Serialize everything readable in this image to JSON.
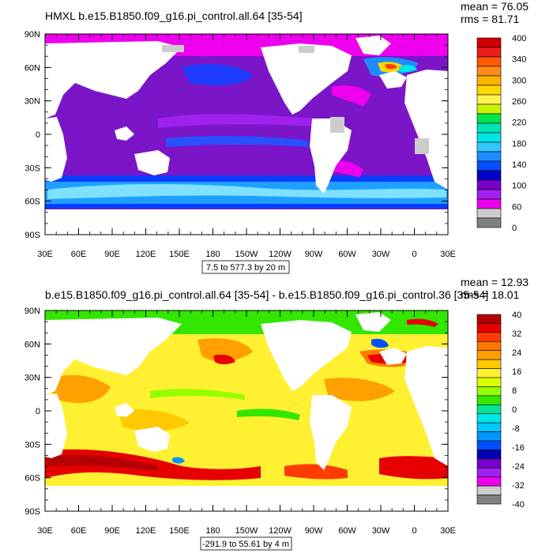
{
  "panels": [
    {
      "id": "top",
      "title": "HMXL b.e15.B1850.f09_g16.pi_control.all.64 [35-54]",
      "mean_text": "mean = 76.05",
      "rms_text": "rms = 81.71",
      "range_text": "7.5 to 577.3 by 20 m",
      "lat_labels": [
        "90N",
        "60N",
        "30N",
        "0",
        "30S",
        "60S",
        "90S"
      ],
      "lon_labels": [
        "30E",
        "60E",
        "90E",
        "120E",
        "150E",
        "180",
        "150W",
        "120W",
        "90W",
        "60W",
        "30W",
        "0",
        "30E"
      ],
      "colorbar": {
        "labels": [
          "400",
          "340",
          "300",
          "260",
          "220",
          "180",
          "140",
          "100",
          "60",
          "0"
        ],
        "colors": [
          "#d10000",
          "#ec1c1c",
          "#ff5a00",
          "#ff8c1a",
          "#ffb400",
          "#ffd700",
          "#fff44f",
          "#ccf200",
          "#00e54c",
          "#00e5b4",
          "#00e6e6",
          "#30c8ff",
          "#1e8cff",
          "#0050ff",
          "#0000c8",
          "#7800c8",
          "#a020f0",
          "#ee00ee",
          "#cccccc",
          "#808080"
        ]
      }
    },
    {
      "id": "bottom",
      "title": "b.e15.B1850.f09_g16.pi_control.all.64 [35-54] - b.e15.B1850.f09_g16.pi_control.36 [35-54]",
      "mean_text": "mean = 12.93",
      "rms_text": "rms = 18.01",
      "range_text": "-291.9 to 55.61 by 4 m",
      "lat_labels": [
        "90N",
        "60N",
        "30N",
        "0",
        "30S",
        "60S",
        "90S"
      ],
      "lon_labels": [
        "30E",
        "60E",
        "90E",
        "120E",
        "150E",
        "180",
        "150W",
        "120W",
        "90W",
        "60W",
        "30W",
        "0",
        "30E"
      ],
      "colorbar": {
        "labels": [
          "40",
          "32",
          "24",
          "16",
          "8",
          "0",
          "-8",
          "-16",
          "-24",
          "-32",
          "-40"
        ],
        "colors": [
          "#b40000",
          "#e60000",
          "#ff3c00",
          "#ff7800",
          "#ffa000",
          "#ffc800",
          "#fff032",
          "#dcff00",
          "#96ff00",
          "#32e600",
          "#00e690",
          "#00e6e6",
          "#00c8ff",
          "#0096ff",
          "#0050ff",
          "#0000b4",
          "#7800c8",
          "#a020f0",
          "#ee00ee",
          "#cccccc",
          "#808080"
        ]
      }
    }
  ]
}
